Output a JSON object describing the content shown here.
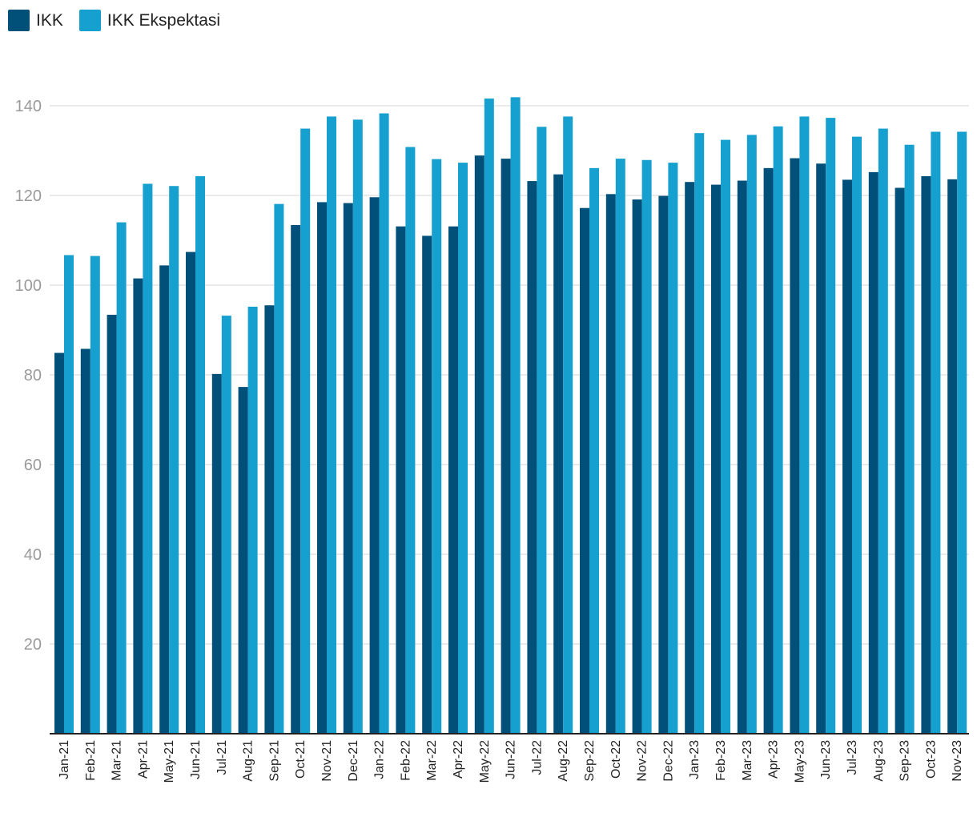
{
  "colors": {
    "ikk": "#01507a",
    "ikk_ekspektasi": "#16a0d0",
    "grid": "#e3e3e3",
    "axis": "#222222"
  },
  "chart_data": {
    "type": "bar",
    "title": "",
    "xlabel": "",
    "ylabel": "",
    "legend": "top-left",
    "grid": true,
    "ylim": [
      0,
      150
    ],
    "yticks": [
      20,
      40,
      60,
      80,
      100,
      120,
      140
    ],
    "categories": [
      "Jan-21",
      "Feb-21",
      "Mar-21",
      "Apr-21",
      "May-21",
      "Jun-21",
      "Jul-21",
      "Aug-21",
      "Sep-21",
      "Oct-21",
      "Nov-21",
      "Dec-21",
      "Jan-22",
      "Feb-22",
      "Mar-22",
      "Apr-22",
      "May-22",
      "Jun-22",
      "Jul-22",
      "Aug-22",
      "Sep-22",
      "Oct-22",
      "Nov-22",
      "Dec-22",
      "Jan-23",
      "Feb-23",
      "Mar-23",
      "Apr-23",
      "May-23",
      "Jun-23",
      "Jul-23",
      "Aug-23",
      "Sep-23",
      "Oct-23",
      "Nov-23"
    ],
    "series": [
      {
        "name": "IKK",
        "values": [
          84.9,
          85.8,
          93.4,
          101.5,
          104.4,
          107.4,
          80.2,
          77.3,
          95.5,
          113.4,
          118.5,
          118.3,
          119.6,
          113.1,
          111.0,
          113.1,
          128.9,
          128.2,
          123.2,
          124.7,
          117.2,
          120.3,
          119.1,
          119.9,
          123.0,
          122.4,
          123.3,
          126.1,
          128.3,
          127.1,
          123.5,
          125.2,
          121.7,
          124.3,
          123.6
        ]
      },
      {
        "name": "IKK Ekspektasi",
        "values": [
          106.7,
          106.5,
          114.0,
          122.6,
          122.1,
          124.3,
          93.2,
          95.2,
          118.1,
          134.9,
          137.6,
          136.9,
          138.3,
          130.8,
          128.1,
          127.3,
          141.6,
          141.9,
          135.3,
          137.6,
          126.1,
          128.2,
          127.9,
          127.3,
          133.9,
          132.4,
          133.5,
          135.4,
          137.6,
          137.3,
          133.1,
          134.9,
          131.3,
          134.2,
          134.2
        ]
      }
    ]
  }
}
